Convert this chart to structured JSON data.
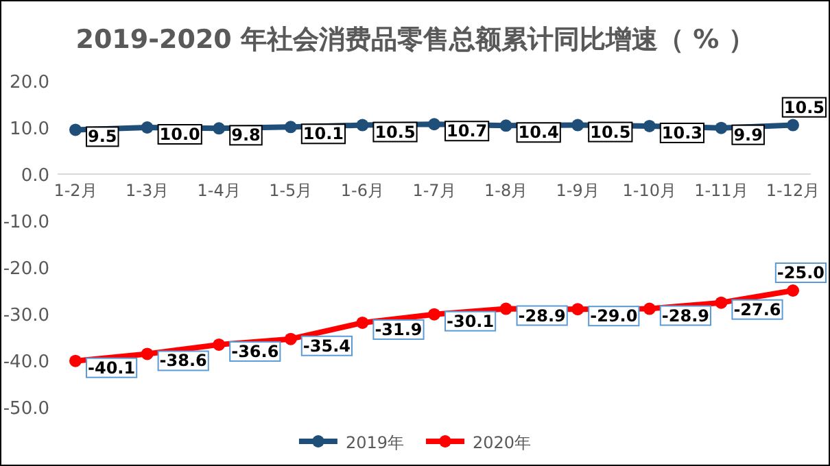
{
  "chart_data": {
    "type": "line",
    "title": "2019-2020 年社会消费品零售总额累计同比增速（ % ）",
    "categories": [
      "1-2月",
      "1-3月",
      "1-4月",
      "1-5月",
      "1-6月",
      "1-7月",
      "1-8月",
      "1-9月",
      "1-10月",
      "1-11月",
      "1-12月"
    ],
    "series": [
      {
        "name": "2019年",
        "color": "#1f4e79",
        "values": [
          9.5,
          10.0,
          9.8,
          10.1,
          10.5,
          10.7,
          10.4,
          10.5,
          10.3,
          9.9,
          10.5
        ],
        "value_labels": [
          "9.5",
          "10.0",
          "9.8",
          "10.1",
          "10.5",
          "10.7",
          "10.4",
          "10.5",
          "10.3",
          "9.9",
          "10.5"
        ]
      },
      {
        "name": "2020年",
        "color": "#ff0000",
        "values": [
          -40.1,
          -38.6,
          -36.6,
          -35.4,
          -31.9,
          -30.1,
          -28.9,
          -29.0,
          -28.9,
          -27.6,
          -25.0
        ],
        "value_labels": [
          "-40.1",
          "-38.6",
          "-36.6",
          "-35.4",
          "-31.9",
          "-30.1",
          "-28.9",
          "-29.0",
          "-28.9",
          "-27.6",
          "-25.0"
        ]
      }
    ],
    "ylim": [
      -50,
      20
    ],
    "yticks": [
      {
        "value": 20,
        "label": "20.0"
      },
      {
        "value": 10,
        "label": "10.0"
      },
      {
        "value": 0,
        "label": "0.0"
      },
      {
        "value": -10,
        "label": "-10.0"
      },
      {
        "value": -20,
        "label": "-20.0"
      },
      {
        "value": -30,
        "label": "-30.0"
      },
      {
        "value": -40,
        "label": "-40.0"
      },
      {
        "value": -50,
        "label": "-50.0"
      }
    ],
    "legend": "bottom",
    "marker": "circle",
    "grid": false
  }
}
